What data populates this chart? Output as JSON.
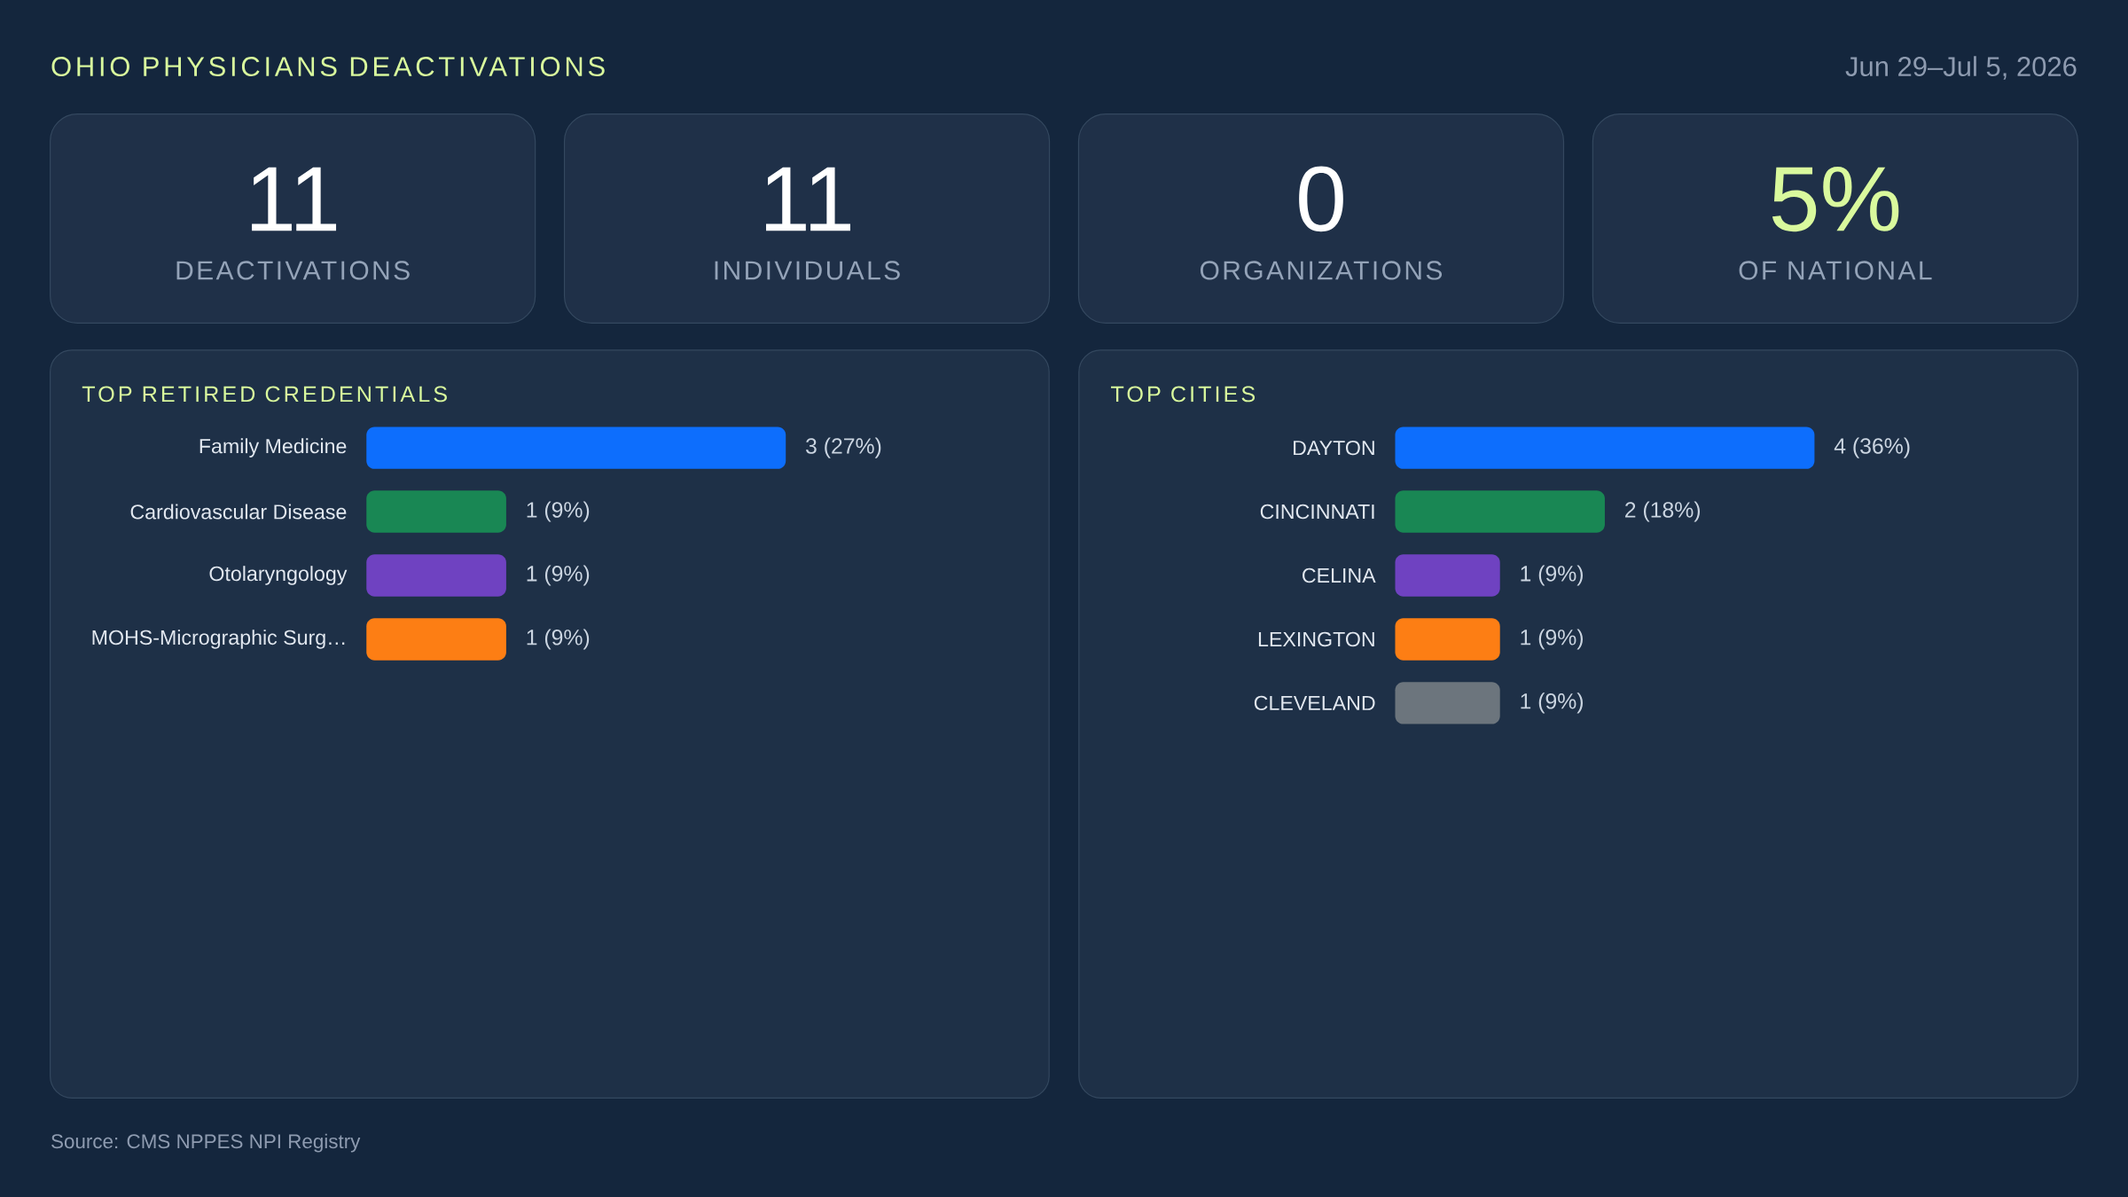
{
  "chart_data": [
    {
      "type": "other",
      "title": "OHIO PHYSICIANS DEACTIVATIONS",
      "subtitle": "Jun 29–Jul 5, 2026",
      "categories": [
        "DEACTIVATIONS",
        "INDIVIDUALS",
        "ORGANIZATIONS",
        "OF NATIONAL"
      ],
      "value_labels": [
        "11",
        "11",
        "0",
        "5%"
      ],
      "colors": [
        "#1f3048",
        "#1f3048",
        "#1f3048",
        "#1f3048"
      ],
      "annotations": [
        "Source: CMS NPPES NPI Registry"
      ]
    },
    {
      "type": "bar",
      "orientation": "horizontal",
      "title": "TOP RETIRED CREDENTIALS",
      "categories": [
        "Family Medicine",
        "Cardiovascular Disease",
        "Otolaryngology",
        "MOHS-Micrographic Surg…"
      ],
      "values": [
        3,
        1,
        1,
        1
      ],
      "colors": [
        "#0d6efd",
        "#198754",
        "#6f42c1",
        "#fd7e14"
      ],
      "value_labels": [
        "3 (27%)",
        "1 (9%)",
        "1 (9%)",
        "1 (9%)"
      ],
      "xlim": [
        0,
        3
      ],
      "tick_labels": "y"
    },
    {
      "type": "bar",
      "orientation": "horizontal",
      "title": "TOP CITIES",
      "categories": [
        "DAYTON",
        "CINCINNATI",
        "CELINA",
        "LEXINGTON",
        "CLEVELAND"
      ],
      "values": [
        4,
        2,
        1,
        1,
        1
      ],
      "colors": [
        "#0d6efd",
        "#198754",
        "#6f42c1",
        "#fd7e14",
        "#6c757d"
      ],
      "value_labels": [
        "4 (36%)",
        "2 (18%)",
        "1 (9%)",
        "1 (9%)",
        "1 (9%)"
      ],
      "xlim": [
        0,
        4
      ],
      "tick_labels": "y"
    }
  ]
}
